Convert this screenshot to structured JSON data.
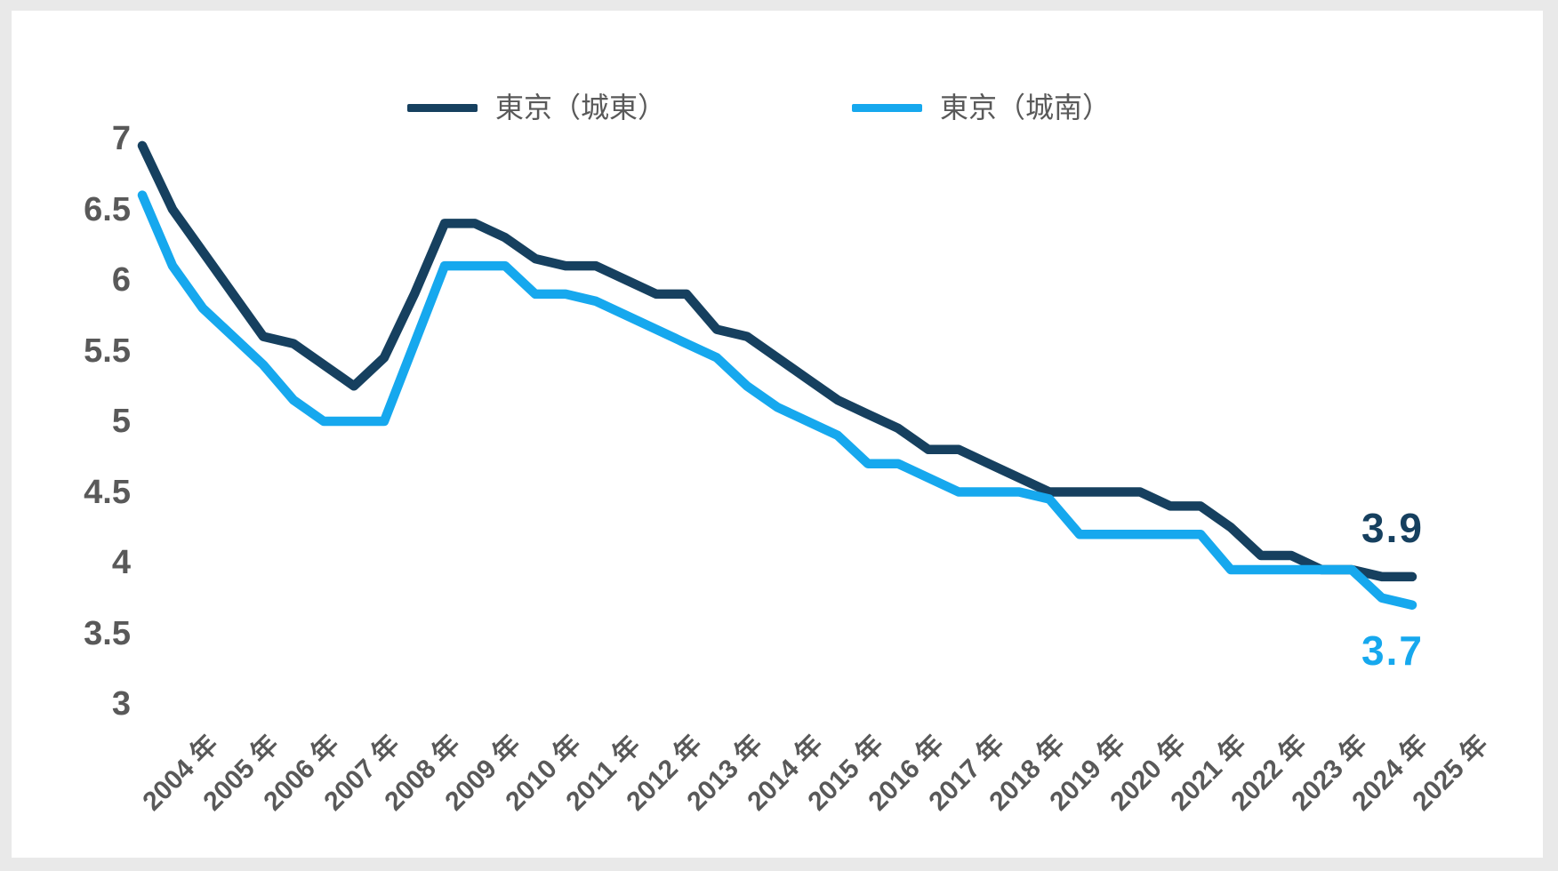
{
  "chart_data": {
    "type": "line",
    "title": "",
    "xlabel": "",
    "ylabel": "",
    "x_axis_unit": "年",
    "x_labels": [
      "2004 年",
      "2005 年",
      "2006 年",
      "2007 年",
      "2008 年",
      "2009 年",
      "2010 年",
      "2011 年",
      "2012 年",
      "2013 年",
      "2014 年",
      "2015 年",
      "2016 年",
      "2017 年",
      "2018 年",
      "2019 年",
      "2020 年",
      "2021 年",
      "2022 年",
      "2023 年",
      "2024 年",
      "2025 年"
    ],
    "x_start": 2004.0,
    "x_step": 0.5,
    "points_per_year": 2,
    "ylim": [
      3,
      7
    ],
    "yticks": [
      "7",
      "6.5",
      "6",
      "5.5",
      "5",
      "4.5",
      "4",
      "3.5",
      "3"
    ],
    "ytick_values": [
      7,
      6.5,
      6,
      5.5,
      5,
      4.5,
      4,
      3.5,
      3
    ],
    "grid": false,
    "legend_position": "top-center",
    "axis_text_color": "#595959",
    "series": [
      {
        "name": "東京（城東）",
        "color": "#16405f",
        "end_label": "3.9",
        "values": [
          6.95,
          6.5,
          6.2,
          5.9,
          5.6,
          5.55,
          5.4,
          5.25,
          5.45,
          5.9,
          6.4,
          6.4,
          6.3,
          6.15,
          6.1,
          6.1,
          6.0,
          5.9,
          5.9,
          5.65,
          5.6,
          5.45,
          5.3,
          5.15,
          5.05,
          4.95,
          4.8,
          4.8,
          4.7,
          4.6,
          4.5,
          4.5,
          4.5,
          4.5,
          4.4,
          4.4,
          4.25,
          4.05,
          4.05,
          3.95,
          3.95,
          3.9,
          3.9
        ]
      },
      {
        "name": "東京（城南）",
        "color": "#16a8ee",
        "end_label": "3.7",
        "values": [
          6.6,
          6.1,
          5.8,
          5.6,
          5.4,
          5.15,
          5.0,
          5.0,
          5.0,
          5.55,
          6.1,
          6.1,
          6.1,
          5.9,
          5.9,
          5.85,
          5.75,
          5.65,
          5.55,
          5.45,
          5.25,
          5.1,
          5.0,
          4.9,
          4.7,
          4.7,
          4.6,
          4.5,
          4.5,
          4.5,
          4.45,
          4.2,
          4.2,
          4.2,
          4.2,
          4.2,
          3.95,
          3.95,
          3.95,
          3.95,
          3.95,
          3.75,
          3.7
        ]
      }
    ]
  }
}
